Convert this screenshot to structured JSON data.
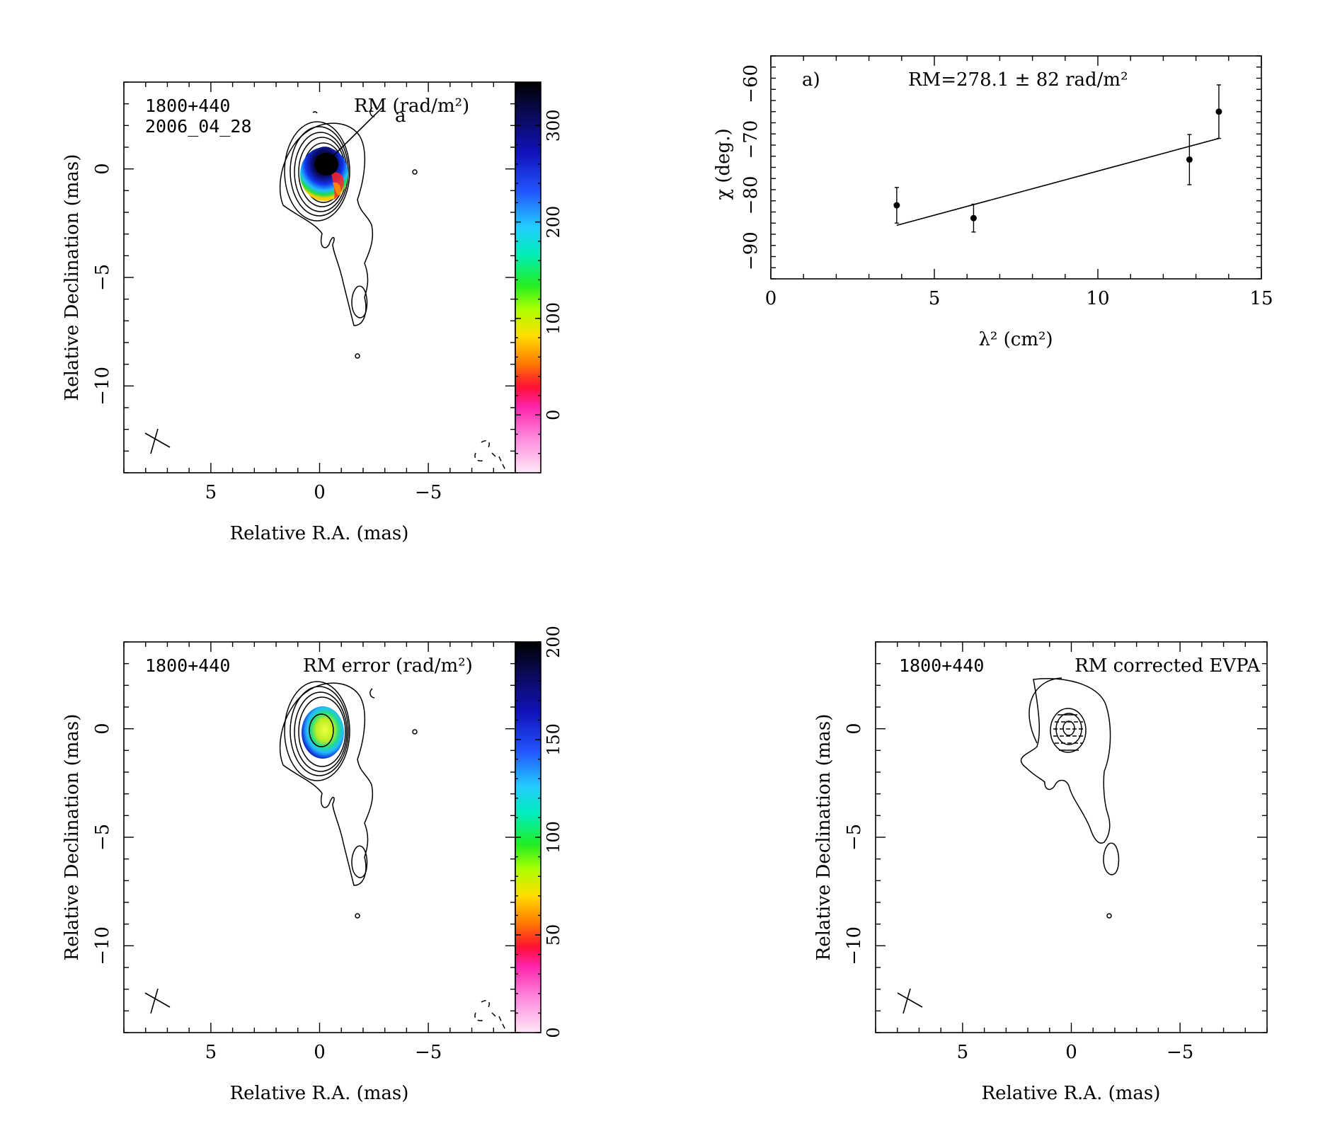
{
  "chart_data": [
    {
      "type": "heatmap",
      "panel": "top-left",
      "source_label": "1800+440",
      "date_label": "2006_04_28",
      "title": "RM (rad/m²)",
      "marker_label": "a",
      "xlabel": "Relative R.A. (mas)",
      "ylabel": "Relative Declination (mas)",
      "xlim": [
        9,
        -9
      ],
      "ylim": [
        -14,
        4
      ],
      "x_ticks": [
        "5",
        "0",
        "−5"
      ],
      "y_ticks": [
        "0",
        "−5",
        "−10"
      ],
      "colorbar": {
        "range": [
          -60,
          345
        ],
        "ticks": [
          "0",
          "100",
          "200",
          "300"
        ],
        "tick_values": [
          0,
          100,
          200,
          300
        ]
      }
    },
    {
      "type": "scatter",
      "panel": "top-right",
      "panel_label": "a)",
      "annotation": "RM=278.1 ± 82 rad/m²",
      "xlabel": "λ² (cm²)",
      "ylabel": "χ (deg.)",
      "xlim": [
        0,
        15
      ],
      "ylim": [
        -95,
        -55
      ],
      "x_ticks": [
        0,
        5,
        10,
        15
      ],
      "y_ticks": [
        -60,
        -70,
        -80,
        -90
      ],
      "points": [
        {
          "x": 3.85,
          "y": -81.8,
          "err": 3.2
        },
        {
          "x": 6.2,
          "y": -84.1,
          "err": 2.5
        },
        {
          "x": 12.8,
          "y": -73.6,
          "err": 4.5
        },
        {
          "x": 13.7,
          "y": -65.0,
          "err": 4.8
        }
      ],
      "fit_line": [
        {
          "x": 3.85,
          "y": -85.4
        },
        {
          "x": 13.7,
          "y": -69.8
        }
      ]
    },
    {
      "type": "heatmap",
      "panel": "bottom-left",
      "source_label": "1800+440",
      "title": "RM error (rad/m²)",
      "xlabel": "Relative R.A. (mas)",
      "ylabel": "Relative Declination (mas)",
      "xlim": [
        9,
        -9
      ],
      "ylim": [
        -14,
        4
      ],
      "x_ticks": [
        "5",
        "0",
        "−5"
      ],
      "y_ticks": [
        "0",
        "−5",
        "−10"
      ],
      "colorbar": {
        "range": [
          0,
          200
        ],
        "ticks": [
          "0",
          "50",
          "100",
          "150",
          "200"
        ],
        "tick_values": [
          0,
          50,
          100,
          150,
          200
        ]
      }
    },
    {
      "type": "heatmap",
      "panel": "bottom-right",
      "source_label": "1800+440",
      "title": "RM corrected EVPA",
      "xlabel": "Relative R.A. (mas)",
      "ylabel": "Relative Declination (mas)",
      "xlim": [
        9,
        -9
      ],
      "ylim": [
        -14,
        4
      ],
      "x_ticks": [
        "5",
        "0",
        "−5"
      ],
      "y_ticks": [
        "0",
        "−5",
        "−10"
      ]
    }
  ]
}
